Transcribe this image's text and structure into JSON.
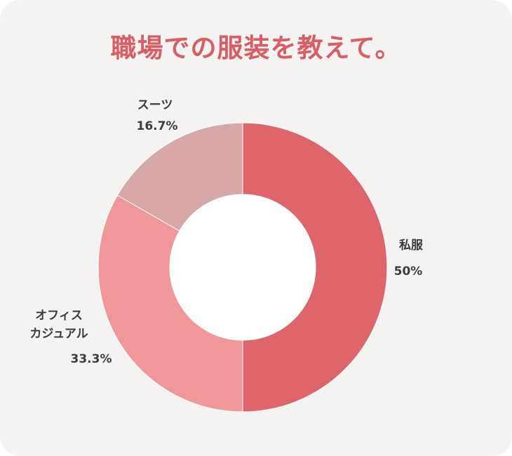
{
  "chart_data": {
    "type": "pie",
    "style": "donut",
    "title": "職場での服装を教えて。",
    "slices": [
      {
        "label": "私服",
        "value": 50,
        "display": "50%",
        "color": "#de666b"
      },
      {
        "label": "オフィス\nカジュアル",
        "value": 33.3,
        "display": "33.3%",
        "color": "#f09799"
      },
      {
        "label": "スーツ",
        "value": 16.7,
        "display": "16.7%",
        "color": "#d8a8a9"
      }
    ]
  }
}
